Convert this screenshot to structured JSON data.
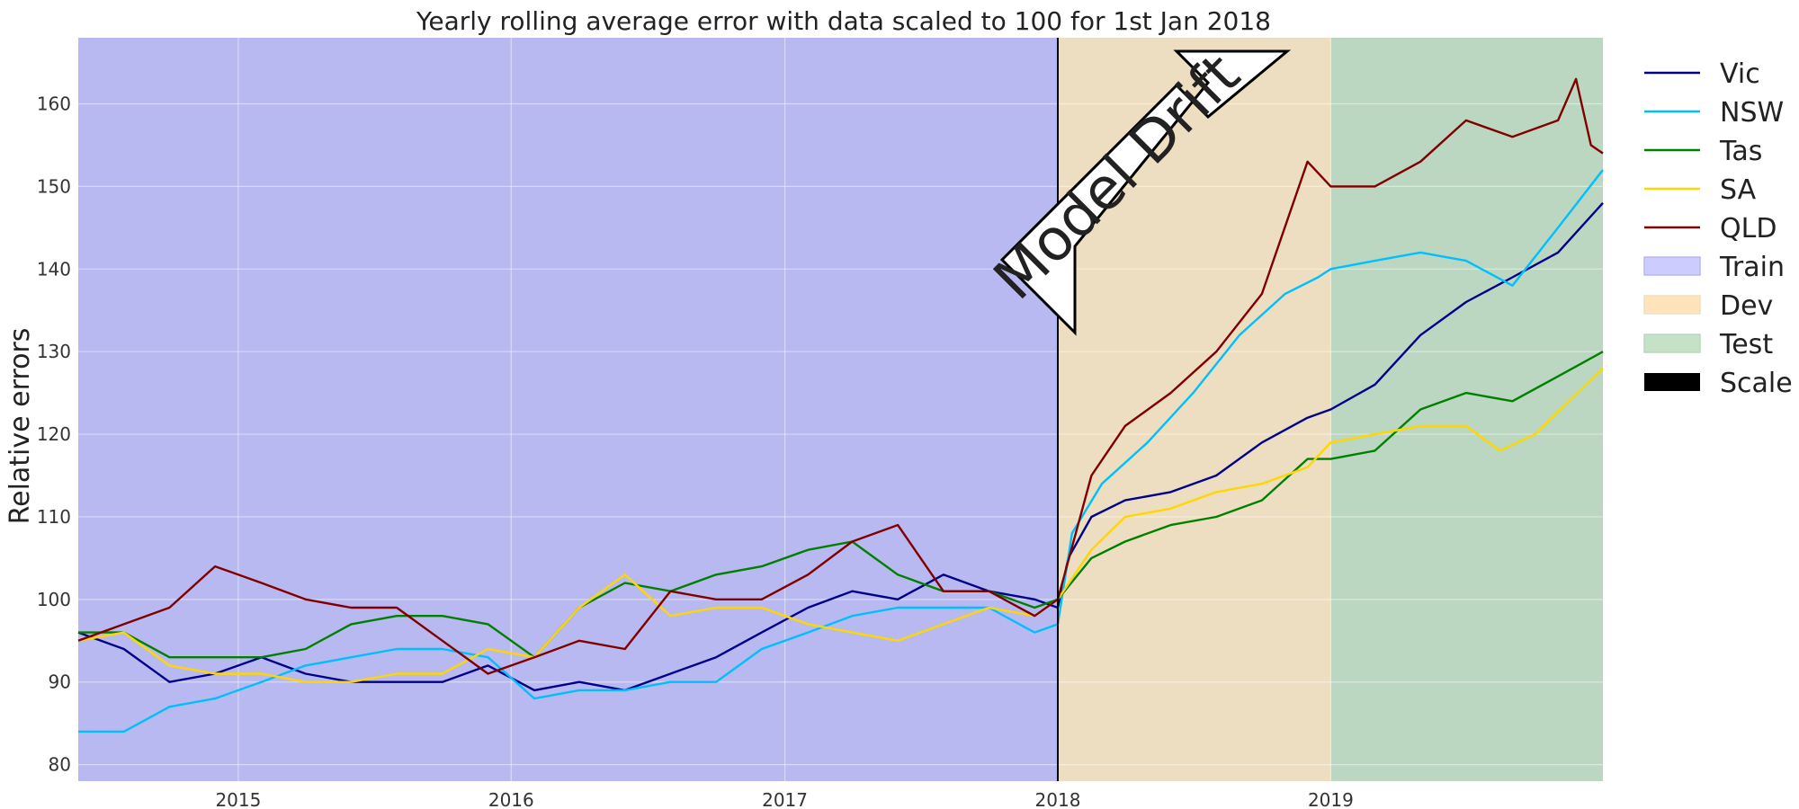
{
  "chart_data": {
    "type": "line",
    "title": "Yearly rolling average error with data scaled to 100 for 1st Jan 2018",
    "xlabel": "",
    "ylabel": "Relative errors",
    "x_axis": "date",
    "xlim": [
      "2014-06-01",
      "2019-12-31"
    ],
    "ylim": [
      78,
      168
    ],
    "xticks": [
      {
        "date": "2015-01-01",
        "label": "2015"
      },
      {
        "date": "2016-01-01",
        "label": "2016"
      },
      {
        "date": "2017-01-01",
        "label": "2017"
      },
      {
        "date": "2018-01-01",
        "label": "2018"
      },
      {
        "date": "2019-01-01",
        "label": "2019"
      }
    ],
    "yticks": [
      80,
      90,
      100,
      110,
      120,
      130,
      140,
      150,
      160
    ],
    "grid": true,
    "legend_position": "outside-right",
    "regions": [
      {
        "name": "Train",
        "start": "2014-06-01",
        "end": "2018-01-01",
        "color": "#b9b9f2",
        "legend_color": "#ccccff"
      },
      {
        "name": "Dev",
        "start": "2018-01-01",
        "end": "2019-01-01",
        "color": "#eedec1",
        "legend_color": "#ffe4bb"
      },
      {
        "name": "Test",
        "start": "2019-01-01",
        "end": "2019-12-31",
        "color": "#bcd7c1",
        "legend_color": "#c6e2c6"
      }
    ],
    "scale_marker": {
      "name": "Scale",
      "date": "2018-01-01",
      "color": "#000000"
    },
    "annotation": {
      "text": "Model Drift"
    },
    "series": [
      {
        "name": "Vic",
        "color": "#00008b",
        "points": [
          [
            "2014-06-01",
            96
          ],
          [
            "2014-08-01",
            94
          ],
          [
            "2014-10-01",
            90
          ],
          [
            "2014-12-01",
            91
          ],
          [
            "2015-02-01",
            93
          ],
          [
            "2015-04-01",
            91
          ],
          [
            "2015-06-01",
            90
          ],
          [
            "2015-08-01",
            90
          ],
          [
            "2015-10-01",
            90
          ],
          [
            "2015-12-01",
            92
          ],
          [
            "2016-02-01",
            89
          ],
          [
            "2016-04-01",
            90
          ],
          [
            "2016-06-01",
            89
          ],
          [
            "2016-08-01",
            91
          ],
          [
            "2016-10-01",
            93
          ],
          [
            "2016-12-01",
            96
          ],
          [
            "2017-02-01",
            99
          ],
          [
            "2017-04-01",
            101
          ],
          [
            "2017-06-01",
            100
          ],
          [
            "2017-08-01",
            103
          ],
          [
            "2017-10-01",
            101
          ],
          [
            "2017-12-01",
            100
          ],
          [
            "2018-01-01",
            99
          ],
          [
            "2018-01-15",
            105
          ],
          [
            "2018-02-15",
            110
          ],
          [
            "2018-04-01",
            112
          ],
          [
            "2018-06-01",
            113
          ],
          [
            "2018-08-01",
            115
          ],
          [
            "2018-10-01",
            119
          ],
          [
            "2018-12-01",
            122
          ],
          [
            "2019-01-01",
            123
          ],
          [
            "2019-03-01",
            126
          ],
          [
            "2019-05-01",
            132
          ],
          [
            "2019-07-01",
            136
          ],
          [
            "2019-09-01",
            139
          ],
          [
            "2019-11-01",
            142
          ],
          [
            "2019-12-31",
            148
          ]
        ]
      },
      {
        "name": "NSW",
        "color": "#00bfff",
        "points": [
          [
            "2014-06-01",
            84
          ],
          [
            "2014-08-01",
            84
          ],
          [
            "2014-10-01",
            87
          ],
          [
            "2014-12-01",
            88
          ],
          [
            "2015-02-01",
            90
          ],
          [
            "2015-04-01",
            92
          ],
          [
            "2015-06-01",
            93
          ],
          [
            "2015-08-01",
            94
          ],
          [
            "2015-10-01",
            94
          ],
          [
            "2015-12-01",
            93
          ],
          [
            "2016-02-01",
            88
          ],
          [
            "2016-04-01",
            89
          ],
          [
            "2016-06-01",
            89
          ],
          [
            "2016-08-01",
            90
          ],
          [
            "2016-10-01",
            90
          ],
          [
            "2016-12-01",
            94
          ],
          [
            "2017-02-01",
            96
          ],
          [
            "2017-04-01",
            98
          ],
          [
            "2017-06-01",
            99
          ],
          [
            "2017-08-01",
            99
          ],
          [
            "2017-10-01",
            99
          ],
          [
            "2017-12-01",
            96
          ],
          [
            "2018-01-01",
            97
          ],
          [
            "2018-01-20",
            108
          ],
          [
            "2018-03-01",
            114
          ],
          [
            "2018-05-01",
            119
          ],
          [
            "2018-07-01",
            125
          ],
          [
            "2018-09-01",
            132
          ],
          [
            "2018-11-01",
            137
          ],
          [
            "2018-12-15",
            139
          ],
          [
            "2019-01-01",
            140
          ],
          [
            "2019-03-01",
            141
          ],
          [
            "2019-05-01",
            142
          ],
          [
            "2019-07-01",
            141
          ],
          [
            "2019-09-01",
            138
          ],
          [
            "2019-11-01",
            145
          ],
          [
            "2019-12-31",
            152
          ]
        ]
      },
      {
        "name": "Tas",
        "color": "#008000",
        "points": [
          [
            "2014-06-01",
            96
          ],
          [
            "2014-08-01",
            96
          ],
          [
            "2014-10-01",
            93
          ],
          [
            "2014-12-01",
            93
          ],
          [
            "2015-02-01",
            93
          ],
          [
            "2015-04-01",
            94
          ],
          [
            "2015-06-01",
            97
          ],
          [
            "2015-08-01",
            98
          ],
          [
            "2015-10-01",
            98
          ],
          [
            "2015-12-01",
            97
          ],
          [
            "2016-02-01",
            93
          ],
          [
            "2016-04-01",
            99
          ],
          [
            "2016-06-01",
            102
          ],
          [
            "2016-08-01",
            101
          ],
          [
            "2016-10-01",
            103
          ],
          [
            "2016-12-01",
            104
          ],
          [
            "2017-02-01",
            106
          ],
          [
            "2017-04-01",
            107
          ],
          [
            "2017-06-01",
            103
          ],
          [
            "2017-08-01",
            101
          ],
          [
            "2017-10-01",
            101
          ],
          [
            "2017-12-01",
            99
          ],
          [
            "2018-01-01",
            100
          ],
          [
            "2018-02-15",
            105
          ],
          [
            "2018-04-01",
            107
          ],
          [
            "2018-06-01",
            109
          ],
          [
            "2018-08-01",
            110
          ],
          [
            "2018-10-01",
            112
          ],
          [
            "2018-12-01",
            117
          ],
          [
            "2019-01-01",
            117
          ],
          [
            "2019-03-01",
            118
          ],
          [
            "2019-05-01",
            123
          ],
          [
            "2019-07-01",
            125
          ],
          [
            "2019-09-01",
            124
          ],
          [
            "2019-11-01",
            127
          ],
          [
            "2019-12-31",
            130
          ]
        ]
      },
      {
        "name": "SA",
        "color": "#ffd700",
        "points": [
          [
            "2014-06-01",
            95
          ],
          [
            "2014-08-01",
            96
          ],
          [
            "2014-10-01",
            92
          ],
          [
            "2014-12-01",
            91
          ],
          [
            "2015-02-01",
            91
          ],
          [
            "2015-04-01",
            90
          ],
          [
            "2015-06-01",
            90
          ],
          [
            "2015-08-01",
            91
          ],
          [
            "2015-10-01",
            91
          ],
          [
            "2015-12-01",
            94
          ],
          [
            "2016-02-01",
            93
          ],
          [
            "2016-04-01",
            99
          ],
          [
            "2016-06-01",
            103
          ],
          [
            "2016-08-01",
            98
          ],
          [
            "2016-10-01",
            99
          ],
          [
            "2016-12-01",
            99
          ],
          [
            "2017-02-01",
            97
          ],
          [
            "2017-04-01",
            96
          ],
          [
            "2017-06-01",
            95
          ],
          [
            "2017-08-01",
            97
          ],
          [
            "2017-10-01",
            99
          ],
          [
            "2017-12-01",
            98
          ],
          [
            "2018-01-01",
            100
          ],
          [
            "2018-02-15",
            106
          ],
          [
            "2018-04-01",
            110
          ],
          [
            "2018-06-01",
            111
          ],
          [
            "2018-08-01",
            113
          ],
          [
            "2018-10-01",
            114
          ],
          [
            "2018-12-01",
            116
          ],
          [
            "2019-01-01",
            119
          ],
          [
            "2019-03-01",
            120
          ],
          [
            "2019-05-01",
            121
          ],
          [
            "2019-07-01",
            121
          ],
          [
            "2019-08-15",
            118
          ],
          [
            "2019-10-01",
            120
          ],
          [
            "2019-12-31",
            128
          ]
        ]
      },
      {
        "name": "QLD",
        "color": "#800000",
        "points": [
          [
            "2014-06-01",
            95
          ],
          [
            "2014-08-01",
            97
          ],
          [
            "2014-10-01",
            99
          ],
          [
            "2014-12-01",
            104
          ],
          [
            "2015-02-01",
            102
          ],
          [
            "2015-04-01",
            100
          ],
          [
            "2015-06-01",
            99
          ],
          [
            "2015-08-01",
            99
          ],
          [
            "2015-10-01",
            95
          ],
          [
            "2015-12-01",
            91
          ],
          [
            "2016-02-01",
            93
          ],
          [
            "2016-04-01",
            95
          ],
          [
            "2016-06-01",
            94
          ],
          [
            "2016-08-01",
            101
          ],
          [
            "2016-10-01",
            100
          ],
          [
            "2016-12-01",
            100
          ],
          [
            "2017-02-01",
            103
          ],
          [
            "2017-04-01",
            107
          ],
          [
            "2017-06-01",
            109
          ],
          [
            "2017-08-01",
            101
          ],
          [
            "2017-10-01",
            101
          ],
          [
            "2017-12-01",
            98
          ],
          [
            "2018-01-01",
            100
          ],
          [
            "2018-02-15",
            115
          ],
          [
            "2018-04-01",
            121
          ],
          [
            "2018-06-01",
            125
          ],
          [
            "2018-08-01",
            130
          ],
          [
            "2018-10-01",
            137
          ],
          [
            "2018-12-01",
            153
          ],
          [
            "2019-01-01",
            150
          ],
          [
            "2019-03-01",
            150
          ],
          [
            "2019-05-01",
            153
          ],
          [
            "2019-07-01",
            158
          ],
          [
            "2019-09-01",
            156
          ],
          [
            "2019-11-01",
            158
          ],
          [
            "2019-11-25",
            163
          ],
          [
            "2019-12-15",
            155
          ],
          [
            "2019-12-31",
            154
          ]
        ]
      }
    ]
  }
}
